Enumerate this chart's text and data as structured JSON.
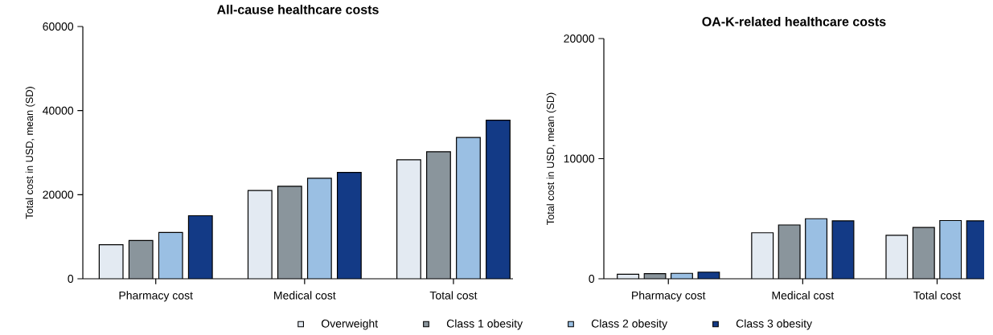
{
  "chart_data": [
    {
      "type": "bar",
      "title": "All-cause healthcare costs",
      "ylabel": "Total cost in USD, mean (SD)",
      "categories": [
        "Pharmacy cost",
        "Medical cost",
        "Total cost"
      ],
      "ylim": [
        0,
        60000
      ],
      "yticks": [
        0,
        20000,
        40000,
        60000
      ],
      "grid": false,
      "legend": "bottom",
      "series": [
        {
          "name": "Overweight",
          "color": "#e3eaf2",
          "values": [
            8100,
            21000,
            28300
          ]
        },
        {
          "name": "Class 1 obesity",
          "color": "#8a959c",
          "values": [
            9100,
            22000,
            30200
          ]
        },
        {
          "name": "Class 2 obesity",
          "color": "#9abfe3",
          "values": [
            11000,
            23900,
            33600
          ]
        },
        {
          "name": "Class 3 obesity",
          "color": "#133a86",
          "values": [
            15000,
            25300,
            37700
          ]
        }
      ]
    },
    {
      "type": "bar",
      "title": "OA-K-related healthcare costs",
      "ylabel": "Total cost in USD, mean (SD)",
      "categories": [
        "Pharmacy cost",
        "Medical cost",
        "Total cost"
      ],
      "ylim": [
        0,
        20000
      ],
      "yticks": [
        0,
        10000,
        20000
      ],
      "grid": false,
      "legend": false,
      "series": [
        {
          "color": "#e3eaf2",
          "values": [
            370,
            3830,
            3620
          ]
        },
        {
          "color": "#8a959c",
          "values": [
            420,
            4480,
            4270
          ]
        },
        {
          "color": "#9abfe3",
          "values": [
            450,
            5000,
            4850
          ]
        },
        {
          "color": "#133a86",
          "values": [
            550,
            4820,
            4820
          ]
        }
      ]
    }
  ]
}
